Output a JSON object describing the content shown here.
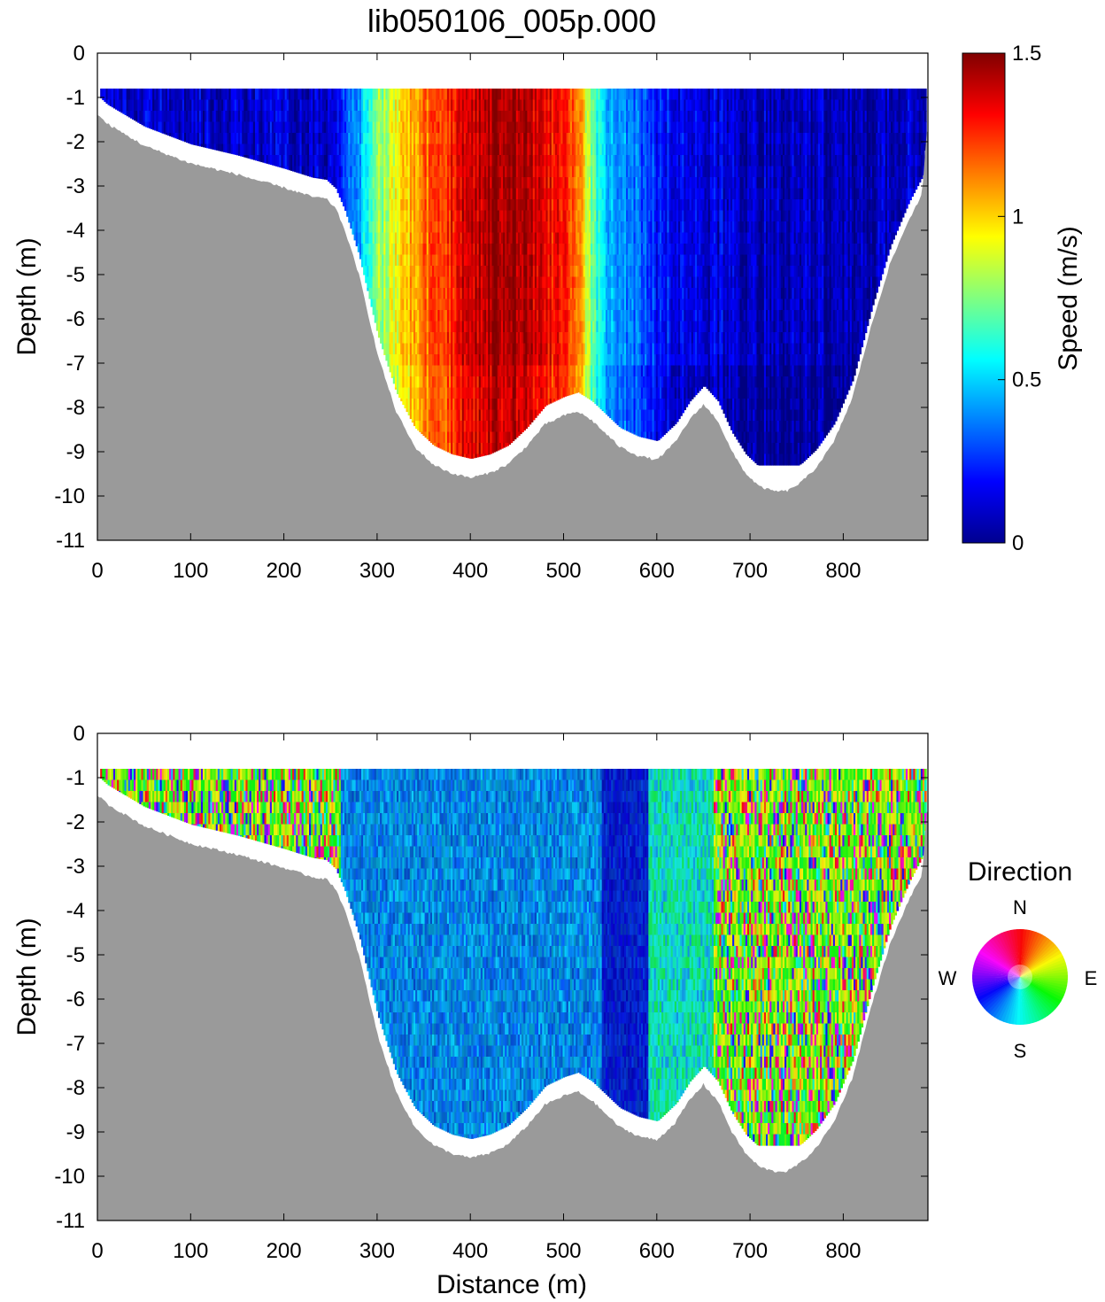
{
  "title": "lib050106_005p.000",
  "chart_data": [
    {
      "type": "heatmap",
      "panel": "speed",
      "xlabel": "",
      "ylabel": "Depth (m)",
      "xlim": [
        0,
        890
      ],
      "ylim": [
        -11,
        0
      ],
      "xticks": [
        0,
        100,
        200,
        300,
        400,
        500,
        600,
        700,
        800
      ],
      "yticks": [
        0,
        -1,
        -2,
        -3,
        -4,
        -5,
        -6,
        -7,
        -8,
        -9,
        -10,
        -11
      ],
      "colorbar": {
        "label": "Speed (m/s)",
        "range": [
          0,
          1.5
        ],
        "ticks": [
          "0",
          "0.5",
          "1",
          "1.5"
        ],
        "colors": [
          "#00008f",
          "#0000ff",
          "#0080ff",
          "#00ffff",
          "#80ff80",
          "#ffff00",
          "#ff8000",
          "#ff0000",
          "#800000"
        ]
      },
      "measurement_top_depth": -0.8,
      "speed_profile": {
        "distance": [
          0,
          100,
          250,
          275,
          300,
          330,
          360,
          390,
          420,
          450,
          480,
          500,
          515,
          530,
          550,
          575,
          600,
          650,
          700,
          800,
          890
        ],
        "speed": [
          0.12,
          0.12,
          0.12,
          0.4,
          0.75,
          1.0,
          1.2,
          1.35,
          1.45,
          1.45,
          1.35,
          1.25,
          1.15,
          0.7,
          0.45,
          0.35,
          0.22,
          0.15,
          0.1,
          0.08,
          0.12
        ]
      }
    },
    {
      "type": "heatmap",
      "panel": "direction",
      "xlabel": "Distance (m)",
      "ylabel": "Depth (m)",
      "xlim": [
        0,
        890
      ],
      "ylim": [
        -11,
        0
      ],
      "xticks": [
        0,
        100,
        200,
        300,
        400,
        500,
        600,
        700,
        800
      ],
      "yticks": [
        0,
        -1,
        -2,
        -3,
        -4,
        -5,
        -6,
        -7,
        -8,
        -9,
        -10,
        -11
      ],
      "legend": {
        "title": "Direction",
        "N": "N",
        "E": "E",
        "S": "S",
        "W": "W"
      },
      "measurement_top_depth": -0.8,
      "direction_zones": [
        {
          "from": 0,
          "to": 260,
          "character": "mixed"
        },
        {
          "from": 260,
          "to": 540,
          "character": "blue"
        },
        {
          "from": 540,
          "to": 590,
          "character": "dark-blue"
        },
        {
          "from": 590,
          "to": 660,
          "character": "cyan-green"
        },
        {
          "from": 660,
          "to": 890,
          "character": "mixed"
        }
      ]
    }
  ],
  "bed_profile": {
    "distance": [
      0,
      10,
      50,
      100,
      150,
      200,
      230,
      245,
      255,
      265,
      280,
      300,
      320,
      340,
      360,
      380,
      400,
      420,
      440,
      460,
      480,
      500,
      515,
      530,
      545,
      560,
      580,
      600,
      620,
      635,
      650,
      665,
      680,
      695,
      710,
      725,
      740,
      755,
      770,
      790,
      810,
      830,
      850,
      870,
      885,
      890
    ],
    "depth": [
      -1.4,
      -1.6,
      -2.1,
      -2.5,
      -2.75,
      -3.05,
      -3.25,
      -3.3,
      -3.5,
      -4.0,
      -5.0,
      -6.8,
      -8.1,
      -8.9,
      -9.3,
      -9.5,
      -9.6,
      -9.5,
      -9.3,
      -8.9,
      -8.4,
      -8.2,
      -8.1,
      -8.3,
      -8.6,
      -8.9,
      -9.1,
      -9.2,
      -8.8,
      -8.3,
      -7.95,
      -8.3,
      -9.0,
      -9.5,
      -9.8,
      -9.9,
      -9.9,
      -9.7,
      -9.4,
      -8.8,
      -7.8,
      -6.2,
      -4.8,
      -3.8,
      -3.2,
      -1.8
    ]
  }
}
